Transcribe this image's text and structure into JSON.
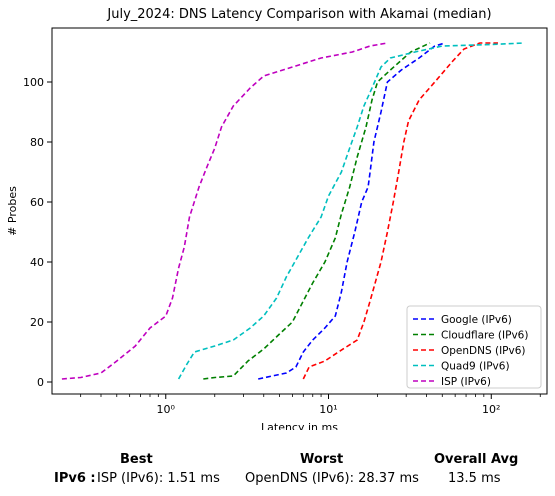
{
  "chart_data": {
    "type": "line",
    "title": "July_2024: DNS Latency Comparison with Akamai (median)",
    "xlabel": "Latency in ms",
    "ylabel": "# Probes",
    "x_scale": "log",
    "xlim": [
      0.2,
      220
    ],
    "ylim": [
      -4,
      118
    ],
    "x_ticks": [
      1,
      10,
      100
    ],
    "x_tick_labels": [
      "10⁰",
      "10¹",
      "10²"
    ],
    "y_ticks": [
      0,
      20,
      40,
      60,
      80,
      100
    ],
    "legend_position": "bottom-right",
    "grid": false,
    "series": [
      {
        "name": "Google (IPv6)",
        "color": "#0000ff",
        "points": [
          [
            3.7,
            1
          ],
          [
            4.5,
            2
          ],
          [
            5.5,
            3
          ],
          [
            6.3,
            5
          ],
          [
            7.0,
            10
          ],
          [
            8.0,
            14
          ],
          [
            9.5,
            18
          ],
          [
            11.0,
            22
          ],
          [
            12.0,
            30
          ],
          [
            13.0,
            40
          ],
          [
            14.5,
            50
          ],
          [
            16.0,
            60
          ],
          [
            17.5,
            65
          ],
          [
            18.0,
            70
          ],
          [
            19.0,
            80
          ],
          [
            21.0,
            90
          ],
          [
            23.0,
            100
          ],
          [
            28.0,
            104
          ],
          [
            36.0,
            108
          ],
          [
            45.0,
            112
          ],
          [
            52.0,
            113
          ]
        ]
      },
      {
        "name": "Cloudflare (IPv6)",
        "color": "#008000",
        "points": [
          [
            1.7,
            1
          ],
          [
            2.0,
            1.5
          ],
          [
            2.6,
            2
          ],
          [
            3.2,
            7
          ],
          [
            4.0,
            11
          ],
          [
            5.0,
            16
          ],
          [
            6.0,
            20
          ],
          [
            7.0,
            27
          ],
          [
            8.0,
            33
          ],
          [
            9.5,
            40
          ],
          [
            11.0,
            48
          ],
          [
            12.0,
            56
          ],
          [
            13.5,
            65
          ],
          [
            15.0,
            75
          ],
          [
            17.0,
            85
          ],
          [
            18.5,
            94
          ],
          [
            20.0,
            100
          ],
          [
            24.0,
            104
          ],
          [
            32.0,
            110
          ],
          [
            42.0,
            113
          ]
        ]
      },
      {
        "name": "OpenDNS (IPv6)",
        "color": "#ff0000",
        "points": [
          [
            7.0,
            1
          ],
          [
            7.6,
            5
          ],
          [
            9.5,
            7
          ],
          [
            11.5,
            10
          ],
          [
            15.0,
            14
          ],
          [
            16.5,
            20
          ],
          [
            18.0,
            27
          ],
          [
            21.0,
            40
          ],
          [
            23.0,
            50
          ],
          [
            25.0,
            60
          ],
          [
            27.0,
            70
          ],
          [
            29.0,
            80
          ],
          [
            31.0,
            87
          ],
          [
            36.0,
            94
          ],
          [
            45.0,
            100
          ],
          [
            58.0,
            107
          ],
          [
            68.0,
            111
          ],
          [
            85.0,
            113
          ],
          [
            110.0,
            113
          ]
        ]
      },
      {
        "name": "Quad9 (IPv6)",
        "color": "#00bfbf",
        "points": [
          [
            1.2,
            1
          ],
          [
            1.35,
            6
          ],
          [
            1.5,
            10
          ],
          [
            2.0,
            12
          ],
          [
            2.6,
            14
          ],
          [
            3.3,
            18
          ],
          [
            4.0,
            22
          ],
          [
            4.8,
            28
          ],
          [
            5.5,
            35
          ],
          [
            6.5,
            42
          ],
          [
            7.5,
            48
          ],
          [
            9.0,
            55
          ],
          [
            10.0,
            62
          ],
          [
            12.0,
            70
          ],
          [
            13.5,
            78
          ],
          [
            15.0,
            85
          ],
          [
            16.5,
            92
          ],
          [
            18.5,
            98
          ],
          [
            21.0,
            105
          ],
          [
            24.0,
            108
          ],
          [
            34.0,
            110
          ],
          [
            50.0,
            112
          ],
          [
            100.0,
            112.5
          ],
          [
            160.0,
            113
          ]
        ]
      },
      {
        "name": "ISP (IPv6)",
        "color": "#bf00bf",
        "points": [
          [
            0.23,
            1
          ],
          [
            0.3,
            1.5
          ],
          [
            0.4,
            3
          ],
          [
            0.5,
            7
          ],
          [
            0.65,
            12
          ],
          [
            0.8,
            18
          ],
          [
            1.0,
            22
          ],
          [
            1.1,
            28
          ],
          [
            1.2,
            38
          ],
          [
            1.3,
            45
          ],
          [
            1.4,
            55
          ],
          [
            1.6,
            65
          ],
          [
            1.8,
            72
          ],
          [
            2.0,
            78
          ],
          [
            2.2,
            85
          ],
          [
            2.6,
            92
          ],
          [
            3.3,
            98
          ],
          [
            4.0,
            102
          ],
          [
            6.0,
            105
          ],
          [
            9.0,
            108
          ],
          [
            14.0,
            110
          ],
          [
            18.0,
            112
          ],
          [
            23.0,
            113
          ]
        ]
      }
    ]
  },
  "summary": {
    "best_header": "Best",
    "worst_header": "Worst",
    "avg_header": "Overall Avg",
    "row_label": "IPv6 :",
    "best_value": "ISP (IPv6): 1.51 ms",
    "worst_value": "OpenDNS (IPv6): 28.37 ms",
    "avg_value": "13.5 ms"
  }
}
